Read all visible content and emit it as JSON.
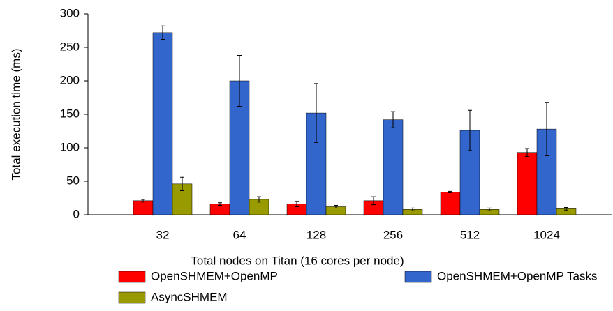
{
  "chart_data": {
    "type": "bar",
    "xlabel": "Total nodes on Titan (16 cores per node)",
    "ylabel": "Total execution time (ms)",
    "categories": [
      "32",
      "64",
      "128",
      "256",
      "512",
      "1024"
    ],
    "series": [
      {
        "name": "OpenSHMEM+OpenMP",
        "color": "#ff0000",
        "values": [
          21,
          16,
          16,
          21,
          34,
          93
        ],
        "errors": [
          2,
          2,
          4,
          6,
          1,
          6
        ]
      },
      {
        "name": "OpenSHMEM+OpenMP Tasks",
        "color": "#3366cc",
        "values": [
          272,
          200,
          152,
          142,
          126,
          128
        ],
        "errors": [
          10,
          38,
          44,
          12,
          30,
          40
        ]
      },
      {
        "name": "AsyncSHMEM",
        "color": "#999900",
        "values": [
          46,
          23,
          12,
          8,
          8,
          9
        ],
        "errors": [
          10,
          4,
          2,
          2,
          2,
          2
        ]
      }
    ],
    "ylim": [
      0,
      300
    ],
    "yticks": [
      0,
      50,
      100,
      150,
      200,
      250,
      300
    ],
    "grid": false
  }
}
